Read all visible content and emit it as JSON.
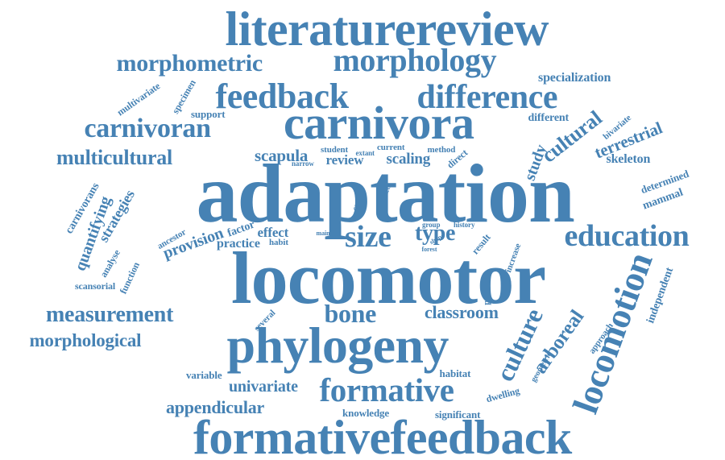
{
  "palette": {
    "word": "#4682b4",
    "background": "#ffffff"
  },
  "words": [
    {
      "text": "literaturereview"
    },
    {
      "text": "morphometric"
    },
    {
      "text": "morphology"
    },
    {
      "text": "feedback"
    },
    {
      "text": "difference"
    },
    {
      "text": "specialization"
    },
    {
      "text": "multivariate"
    },
    {
      "text": "specimen"
    },
    {
      "text": "potential"
    },
    {
      "text": "carnivoran"
    },
    {
      "text": "carnivora"
    },
    {
      "text": "support"
    },
    {
      "text": "different"
    },
    {
      "text": "bivariate"
    },
    {
      "text": "cultural"
    },
    {
      "text": "terrestrial"
    },
    {
      "text": "multicultural"
    },
    {
      "text": "scapula"
    },
    {
      "text": "student"
    },
    {
      "text": "extant"
    },
    {
      "text": "current"
    },
    {
      "text": "method"
    },
    {
      "text": "narrow"
    },
    {
      "text": "review"
    },
    {
      "text": "scaling"
    },
    {
      "text": "direct"
    },
    {
      "text": "study"
    },
    {
      "text": "skeleton"
    },
    {
      "text": "adaptation"
    },
    {
      "text": "determined"
    },
    {
      "text": "carnivorans"
    },
    {
      "text": "strategies"
    },
    {
      "text": "quantifying"
    },
    {
      "text": "mammal"
    },
    {
      "text": "case"
    },
    {
      "text": "utilized"
    },
    {
      "text": "ancestor"
    },
    {
      "text": "factor"
    },
    {
      "text": "provision"
    },
    {
      "text": "effect"
    },
    {
      "text": "practice"
    },
    {
      "text": "habit"
    },
    {
      "text": "main"
    },
    {
      "text": "size"
    },
    {
      "text": "type"
    },
    {
      "text": "group"
    },
    {
      "text": "history"
    },
    {
      "text": "shape"
    },
    {
      "text": "forest"
    },
    {
      "text": "result"
    },
    {
      "text": "education"
    },
    {
      "text": "analyse"
    },
    {
      "text": "function"
    },
    {
      "text": "locomotor"
    },
    {
      "text": "increase"
    },
    {
      "text": "scansorial"
    },
    {
      "text": "independent"
    },
    {
      "text": "measurement"
    },
    {
      "text": "bone"
    },
    {
      "text": "classroom"
    },
    {
      "text": "several"
    },
    {
      "text": "morphological"
    },
    {
      "text": "phylogeny"
    },
    {
      "text": "culture"
    },
    {
      "text": "arboreal"
    },
    {
      "text": "approach"
    },
    {
      "text": "locomotion"
    },
    {
      "text": "geometric"
    },
    {
      "text": "variable"
    },
    {
      "text": "habitat"
    },
    {
      "text": "univariate"
    },
    {
      "text": "formative"
    },
    {
      "text": "dwelling"
    },
    {
      "text": "appendicular"
    },
    {
      "text": "knowledge"
    },
    {
      "text": "significant"
    },
    {
      "text": "formativefeedback"
    }
  ]
}
